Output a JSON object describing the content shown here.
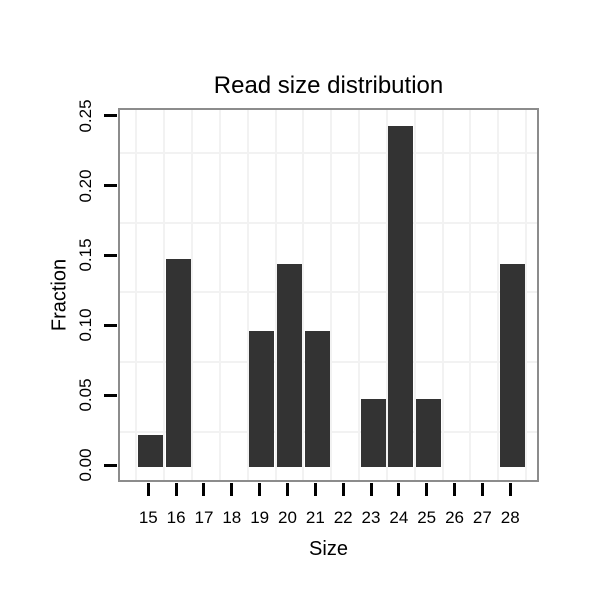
{
  "chart_data": {
    "type": "bar",
    "title": "Read size distribution",
    "xlabel": "Size",
    "ylabel": "Fraction",
    "categories": [
      "15",
      "16",
      "17",
      "18",
      "19",
      "20",
      "21",
      "22",
      "23",
      "24",
      "25",
      "26",
      "27",
      "28"
    ],
    "values": [
      0.023,
      0.149,
      0,
      0,
      0.097,
      0.145,
      0.097,
      0,
      0.049,
      0.244,
      0.049,
      0,
      0,
      0.145
    ],
    "ylim": [
      0,
      0.25
    ],
    "ytick_labels": [
      "0.00",
      "0.05",
      "0.10",
      "0.15",
      "0.20",
      "0.25"
    ],
    "minor_gridlines_y": [
      0.025,
      0.075,
      0.125,
      0.175,
      0.225
    ],
    "grid": "minor-horizontal and category-boundary vertical",
    "legend": "none",
    "colors": {
      "bar": "#333333",
      "panel_border": "#8c8c8c",
      "gridline": "#f2f2f2",
      "tick": "#000000",
      "text": "#000000",
      "background": "#ffffff"
    }
  }
}
